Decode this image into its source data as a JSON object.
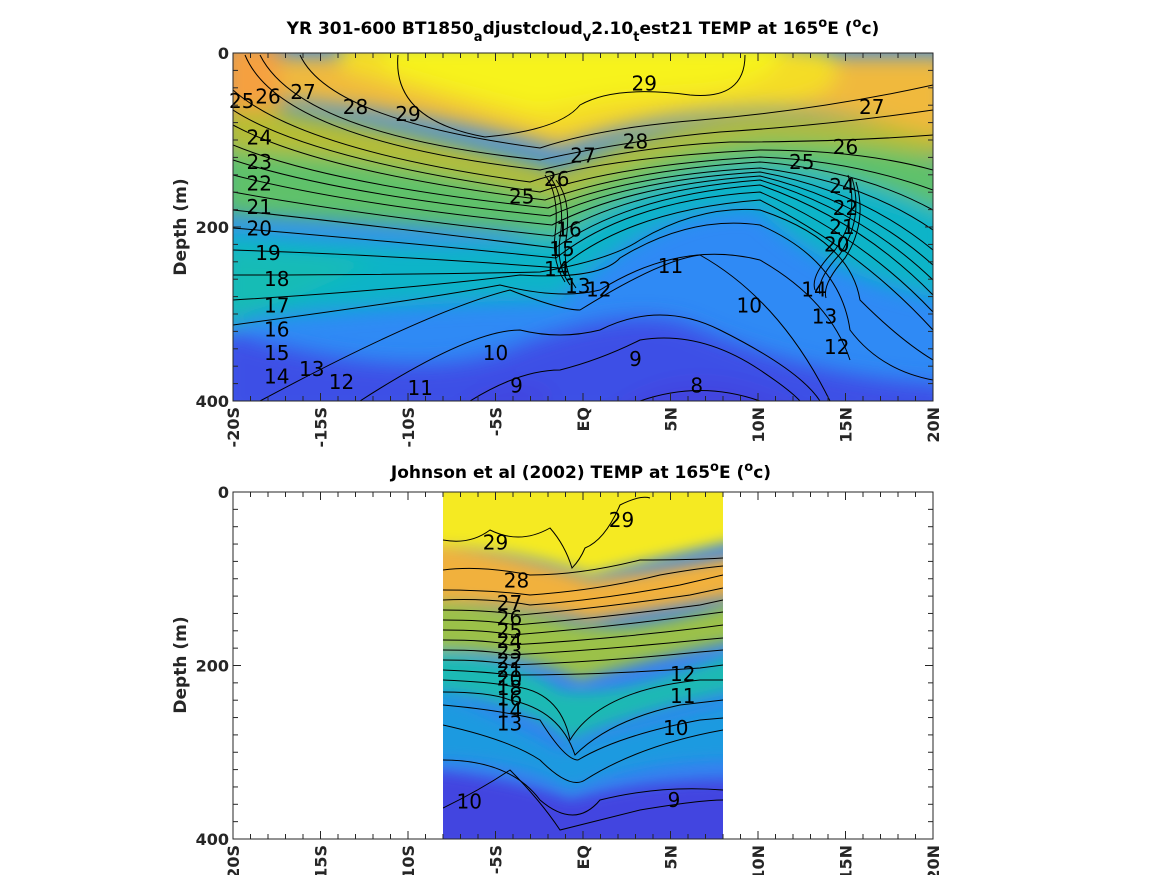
{
  "chart_data": [
    {
      "type": "heatmap",
      "title": "YR 301-600 BT1850",
      "title_sub1": "a",
      "title_mid": "djustcloud",
      "title_sub2": "v",
      "title_mid2": "2.10",
      "title_sub3": "t",
      "title_end": "est21 TEMP at 165",
      "title_deg": "o",
      "title_unit": "E (",
      "title_unit_deg": "o",
      "title_unit_end": "c)",
      "ylabel": "Depth (m)",
      "xlim": [
        -20,
        20
      ],
      "ylim": [
        0,
        400
      ],
      "y_reversed": true,
      "x_ticks": [
        "-20S",
        "-15S",
        "-10S",
        "-5S",
        "EQ",
        "5N",
        "10N",
        "15N",
        "20N"
      ],
      "y_ticks": [
        "0",
        "200",
        "400"
      ],
      "colormap": "parula",
      "contour_labels": [
        {
          "label": "25",
          "x": -19.5,
          "y": 55
        },
        {
          "label": "26",
          "x": -18,
          "y": 50
        },
        {
          "label": "27",
          "x": -16,
          "y": 45
        },
        {
          "label": "28",
          "x": -13,
          "y": 62
        },
        {
          "label": "29",
          "x": -10,
          "y": 70
        },
        {
          "label": "29",
          "x": 3.5,
          "y": 35
        },
        {
          "label": "28",
          "x": 3,
          "y": 102
        },
        {
          "label": "27",
          "x": 0,
          "y": 118
        },
        {
          "label": "26",
          "x": -1.5,
          "y": 145
        },
        {
          "label": "25",
          "x": -3.5,
          "y": 165
        },
        {
          "label": "27",
          "x": 16.5,
          "y": 62
        },
        {
          "label": "26",
          "x": 15,
          "y": 108
        },
        {
          "label": "25",
          "x": 12.5,
          "y": 125
        },
        {
          "label": "24",
          "x": 14.8,
          "y": 153
        },
        {
          "label": "24",
          "x": -18.5,
          "y": 97
        },
        {
          "label": "23",
          "x": -18.5,
          "y": 125
        },
        {
          "label": "22",
          "x": -18.5,
          "y": 150
        },
        {
          "label": "21",
          "x": -18.5,
          "y": 177
        },
        {
          "label": "20",
          "x": -18.5,
          "y": 202
        },
        {
          "label": "19",
          "x": -18,
          "y": 230
        },
        {
          "label": "18",
          "x": -17.5,
          "y": 260
        },
        {
          "label": "17",
          "x": -17.5,
          "y": 290
        },
        {
          "label": "16",
          "x": -17.5,
          "y": 318
        },
        {
          "label": "15",
          "x": -17.5,
          "y": 345
        },
        {
          "label": "14",
          "x": -17.5,
          "y": 372
        },
        {
          "label": "13",
          "x": -15.5,
          "y": 363
        },
        {
          "label": "12",
          "x": -13.8,
          "y": 378
        },
        {
          "label": "11",
          "x": -9.3,
          "y": 385
        },
        {
          "label": "10",
          "x": -5,
          "y": 345
        },
        {
          "label": "9",
          "x": -3.8,
          "y": 382
        },
        {
          "label": "9",
          "x": 3,
          "y": 352
        },
        {
          "label": "8",
          "x": 6.5,
          "y": 382
        },
        {
          "label": "11",
          "x": 5,
          "y": 245
        },
        {
          "label": "10",
          "x": 9.5,
          "y": 290
        },
        {
          "label": "13",
          "x": -0.3,
          "y": 268
        },
        {
          "label": "12",
          "x": 0.9,
          "y": 272
        },
        {
          "label": "14",
          "x": -1.5,
          "y": 248
        },
        {
          "label": "15",
          "x": -1.2,
          "y": 225
        },
        {
          "label": "16",
          "x": -0.8,
          "y": 203
        },
        {
          "label": "13",
          "x": 13.8,
          "y": 303
        },
        {
          "label": "12",
          "x": 14.5,
          "y": 338
        },
        {
          "label": "14",
          "x": 13.2,
          "y": 272
        },
        {
          "label": "22",
          "x": 15,
          "y": 178
        },
        {
          "label": "21",
          "x": 14.8,
          "y": 200
        },
        {
          "label": "20",
          "x": 14.5,
          "y": 220
        }
      ]
    },
    {
      "type": "heatmap",
      "title": "Johnson et al (2002) TEMP at 165",
      "title_deg": "o",
      "title_unit": "E (",
      "title_unit_deg": "o",
      "title_unit_end": "c)",
      "ylabel": "Depth (m)",
      "xlim": [
        -20,
        20
      ],
      "ylim": [
        0,
        400
      ],
      "y_reversed": true,
      "data_x_range": [
        -8,
        8
      ],
      "x_ticks": [
        "-20S",
        "-15S",
        "-10S",
        "-5S",
        "EQ",
        "5N",
        "10N",
        "15N",
        "20N"
      ],
      "y_ticks": [
        "0",
        "200",
        "400"
      ],
      "colormap": "parula",
      "contour_labels": [
        {
          "label": "29",
          "x": -5,
          "y": 58
        },
        {
          "label": "29",
          "x": 2.2,
          "y": 32
        },
        {
          "label": "28",
          "x": -3.8,
          "y": 102
        },
        {
          "label": "27",
          "x": -4.2,
          "y": 128
        },
        {
          "label": "26",
          "x": -4.2,
          "y": 145
        },
        {
          "label": "25",
          "x": -4.2,
          "y": 160
        },
        {
          "label": "24",
          "x": -4.2,
          "y": 172
        },
        {
          "label": "23",
          "x": -4.2,
          "y": 184
        },
        {
          "label": "22",
          "x": -4.2,
          "y": 195
        },
        {
          "label": "21",
          "x": -4.2,
          "y": 205
        },
        {
          "label": "20",
          "x": -4.2,
          "y": 215
        },
        {
          "label": "18",
          "x": -4.2,
          "y": 226
        },
        {
          "label": "16",
          "x": -4.2,
          "y": 238
        },
        {
          "label": "14",
          "x": -4.2,
          "y": 252
        },
        {
          "label": "13",
          "x": -4.2,
          "y": 267
        },
        {
          "label": "12",
          "x": 5.7,
          "y": 210
        },
        {
          "label": "11",
          "x": 5.7,
          "y": 235
        },
        {
          "label": "10",
          "x": 5.3,
          "y": 272
        },
        {
          "label": "10",
          "x": -6.5,
          "y": 357
        },
        {
          "label": "9",
          "x": 5.2,
          "y": 355
        }
      ]
    }
  ]
}
